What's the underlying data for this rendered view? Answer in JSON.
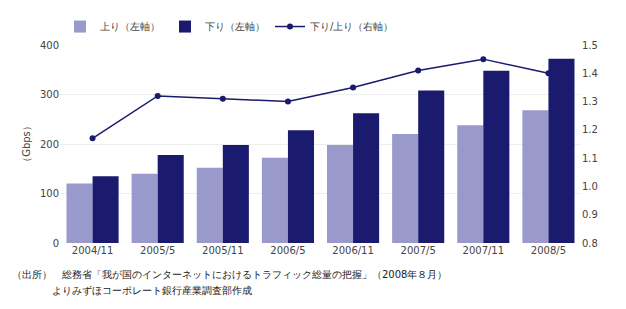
{
  "chart_data": {
    "type": "bar",
    "categories": [
      "2004/11",
      "2005/5",
      "2005/11",
      "2006/5",
      "2006/11",
      "2007/5",
      "2007/11",
      "2008/5"
    ],
    "series": [
      {
        "name": "上り（左軸）",
        "type": "bar",
        "color": "#9999cc",
        "values": [
          120,
          140,
          152,
          172,
          198,
          220,
          238,
          268
        ]
      },
      {
        "name": "下り（左軸）",
        "type": "bar",
        "color": "#1a1a6e",
        "values": [
          135,
          178,
          198,
          228,
          262,
          308,
          348,
          372
        ]
      },
      {
        "name": "下り/上り（右軸）",
        "type": "line",
        "axis": "y2",
        "color": "#1a1a6e",
        "marker": "circle",
        "line_style": "solid",
        "values": [
          1.17,
          1.32,
          1.31,
          1.3,
          1.35,
          1.41,
          1.45,
          1.4
        ]
      }
    ],
    "ylabel": "（Gbps）",
    "ylim": [
      0,
      400
    ],
    "yticks": [
      0,
      100,
      200,
      300,
      400
    ],
    "y2lim": [
      0.8,
      1.5
    ],
    "y2ticks": [
      0.8,
      0.9,
      {
        "value": 1.0,
        "label": "1.0"
      },
      1.1,
      1.2,
      1.3,
      1.4,
      1.5
    ],
    "grid": true,
    "legend": "upper left",
    "annotations": [
      "（出所）　総務省「我が国のインターネットにおけるトラフィック総量の把握」（2008年８月）",
      "　　　　よりみずほコーポレート銀行産業調査部作成"
    ]
  }
}
